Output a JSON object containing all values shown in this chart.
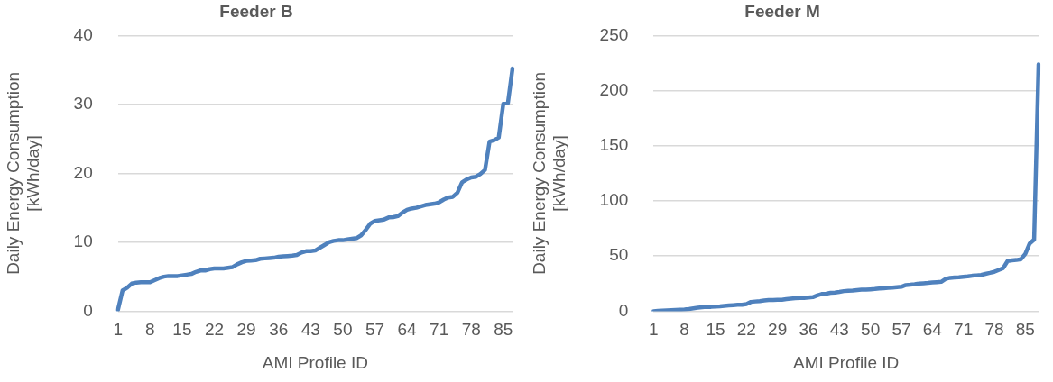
{
  "chart_data": [
    {
      "type": "line",
      "title": "Feeder B",
      "xlabel": "AMI Profile ID",
      "ylabel": "Daily Energy Consumption [kWh/day]",
      "categories": [
        "1",
        null,
        null,
        null,
        null,
        null,
        null,
        "8",
        null,
        null,
        null,
        null,
        null,
        null,
        "15",
        null,
        null,
        null,
        null,
        null,
        null,
        "22",
        null,
        null,
        null,
        null,
        null,
        null,
        "29",
        null,
        null,
        null,
        null,
        null,
        null,
        "36",
        null,
        null,
        null,
        null,
        null,
        null,
        "43",
        null,
        null,
        null,
        null,
        null,
        null,
        "50",
        null,
        null,
        null,
        null,
        null,
        null,
        "57",
        null,
        null,
        null,
        null,
        null,
        null,
        "64",
        null,
        null,
        null,
        null,
        null,
        null,
        "71",
        null,
        null,
        null,
        null,
        null,
        null,
        "78",
        null,
        null,
        null,
        null,
        null,
        null,
        "85",
        null,
        null
      ],
      "series": [
        {
          "color": "#4f81bd",
          "values": [
            0.2,
            3.0,
            3.4,
            4.0,
            4.15,
            4.2,
            4.2,
            4.2,
            4.5,
            4.8,
            5.0,
            5.1,
            5.1,
            5.1,
            5.2,
            5.3,
            5.4,
            5.7,
            5.9,
            5.9,
            6.1,
            6.2,
            6.2,
            6.2,
            6.3,
            6.4,
            6.8,
            7.1,
            7.3,
            7.35,
            7.4,
            7.6,
            7.65,
            7.7,
            7.75,
            7.9,
            7.95,
            8.0,
            8.05,
            8.15,
            8.5,
            8.7,
            8.7,
            8.8,
            9.2,
            9.6,
            10.0,
            10.2,
            10.3,
            10.3,
            10.4,
            10.5,
            10.6,
            11.0,
            11.8,
            12.7,
            13.1,
            13.2,
            13.3,
            13.6,
            13.65,
            13.8,
            14.3,
            14.7,
            14.9,
            15.0,
            15.2,
            15.4,
            15.5,
            15.6,
            15.8,
            16.2,
            16.5,
            16.6,
            17.2,
            18.7,
            19.1,
            19.4,
            19.5,
            19.9,
            20.5,
            24.6,
            24.8,
            25.2,
            30.1,
            30.2,
            35.2
          ]
        }
      ],
      "ylim": [
        0,
        40
      ],
      "yticks": [
        0,
        10,
        20,
        30,
        40
      ],
      "grid": "y",
      "marker": "none"
    },
    {
      "type": "line",
      "title": "Feeder M",
      "xlabel": "AMI Profile ID",
      "ylabel": "Daily Energy Consumption [kWh/day]",
      "categories": [
        "1",
        null,
        null,
        null,
        null,
        null,
        null,
        "8",
        null,
        null,
        null,
        null,
        null,
        null,
        "15",
        null,
        null,
        null,
        null,
        null,
        null,
        "22",
        null,
        null,
        null,
        null,
        null,
        null,
        "29",
        null,
        null,
        null,
        null,
        null,
        null,
        "36",
        null,
        null,
        null,
        null,
        null,
        null,
        "43",
        null,
        null,
        null,
        null,
        null,
        null,
        "50",
        null,
        null,
        null,
        null,
        null,
        null,
        "57",
        null,
        null,
        null,
        null,
        null,
        null,
        "64",
        null,
        null,
        null,
        null,
        null,
        null,
        "71",
        null,
        null,
        null,
        null,
        null,
        null,
        "78",
        null,
        null,
        null,
        null,
        null,
        null,
        "85",
        null,
        null,
        null
      ],
      "series": [
        {
          "color": "#4f81bd",
          "values": [
            0,
            0.3,
            0.5,
            0.7,
            0.9,
            1.1,
            1.3,
            1.5,
            2,
            2.6,
            3.2,
            3.5,
            3.9,
            3.9,
            4.2,
            4.5,
            4.9,
            5.2,
            5.5,
            5.8,
            5.8,
            6.5,
            8.4,
            8.8,
            9.1,
            9.7,
            10.1,
            10.1,
            10.4,
            10.4,
            11,
            11.4,
            11.7,
            12,
            12,
            12.3,
            12.7,
            14.3,
            15.6,
            15.9,
            16.6,
            16.9,
            17.5,
            18.2,
            18.5,
            18.8,
            19.2,
            19.5,
            19.5,
            19.8,
            20.1,
            20.5,
            20.8,
            21.1,
            21.4,
            21.8,
            22.1,
            23.7,
            24,
            24.4,
            25,
            25.3,
            25.6,
            26,
            26.3,
            26.6,
            29.2,
            30.2,
            30.5,
            30.8,
            31.2,
            31.5,
            32.1,
            32.5,
            32.8,
            33.8,
            34.7,
            35.7,
            37.3,
            39,
            45.5,
            46.1,
            46.4,
            47.1,
            51.9,
            61.4,
            64.9,
            223.7
          ]
        }
      ],
      "ylim": [
        0,
        250
      ],
      "yticks": [
        0,
        50,
        100,
        150,
        200,
        250
      ],
      "grid": "y",
      "marker": "none"
    }
  ]
}
